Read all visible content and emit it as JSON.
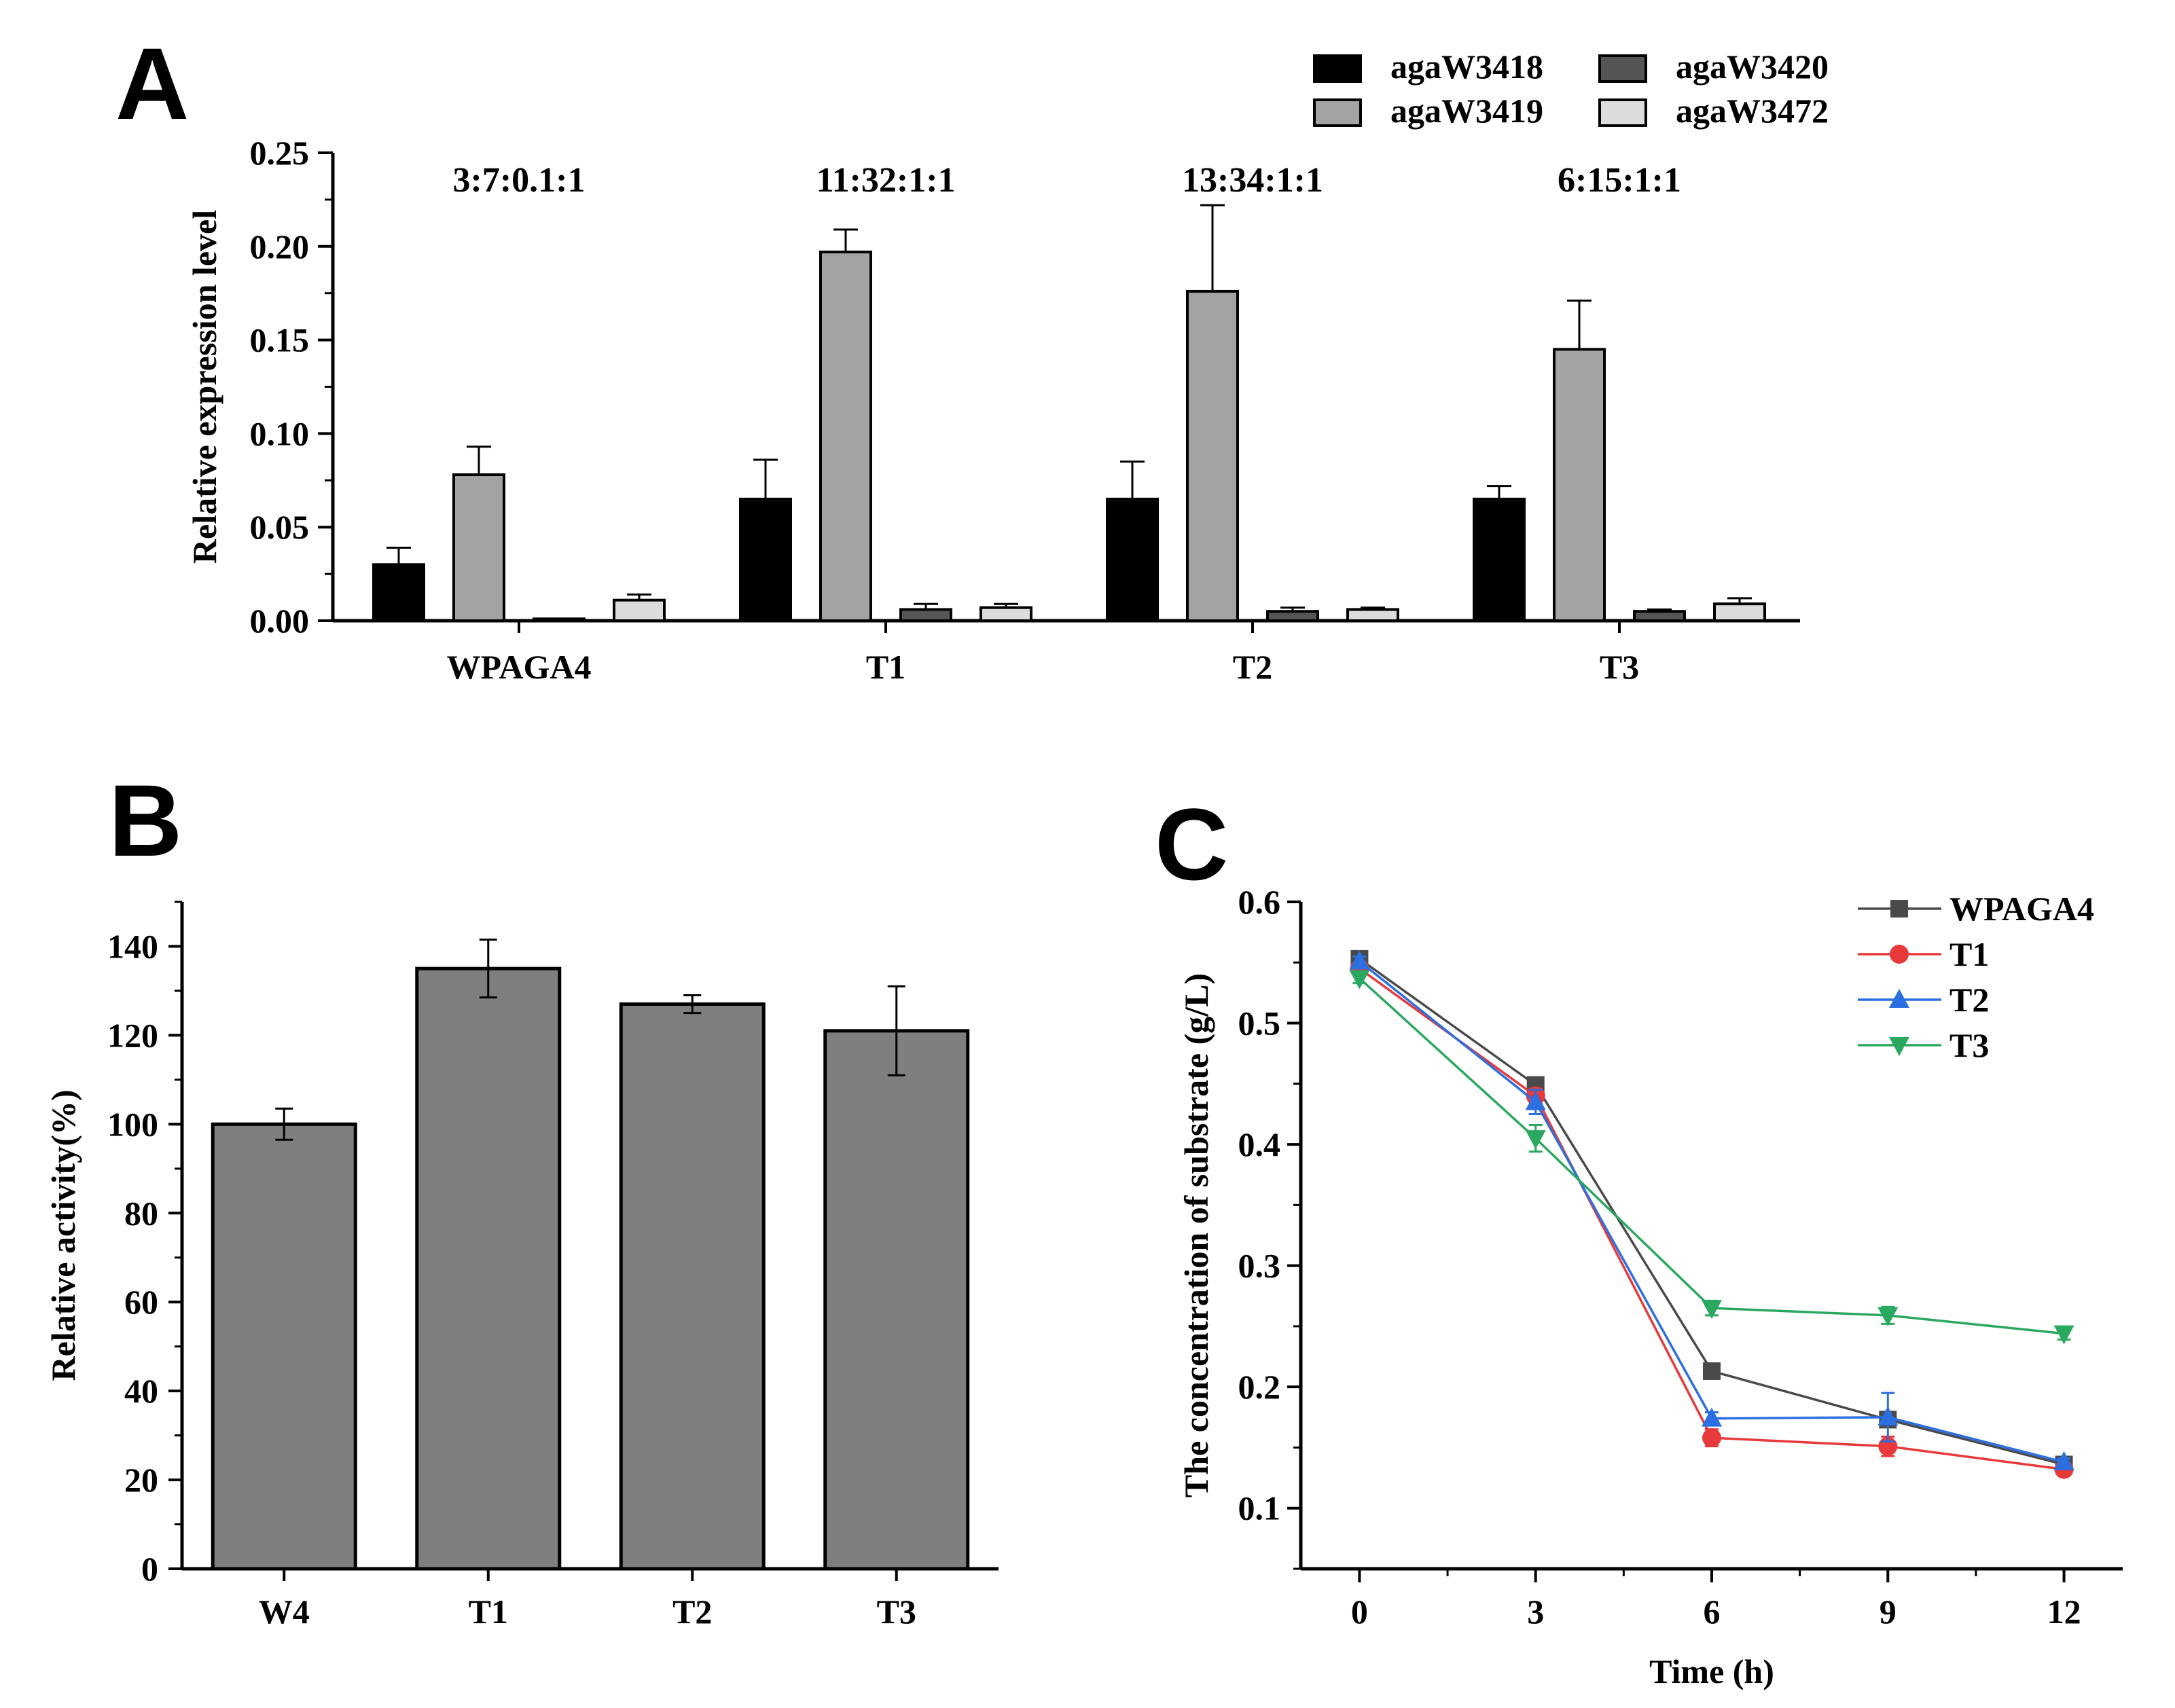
{
  "panels": {
    "a_label": "A",
    "b_label": "B",
    "c_label": "C"
  },
  "colors": {
    "agaW3418": "#000000",
    "agaW3420": "#555555",
    "agaW3419": "#a3a3a3",
    "agaW3472": "#dcdcdc",
    "barB": "#7f7f7f",
    "WPAGA4": "#4a4a4a",
    "T1": "#e8393b",
    "T2": "#2c6fe0",
    "T3": "#2aa85f"
  },
  "chart_data": [
    {
      "id": "A",
      "type": "bar",
      "title": "",
      "ylabel": "Relative expression level",
      "xlabel": "",
      "ylim": [
        0,
        0.25
      ],
      "yticks": [
        "0.00",
        "0.05",
        "0.10",
        "0.15",
        "0.20",
        "0.25"
      ],
      "categories": [
        "WPAGA4",
        "T1",
        "T2",
        "T3"
      ],
      "ratio_labels": [
        "3:7:0.1:1",
        "11:32:1:1",
        "13:34:1:1",
        "6:15:1:1"
      ],
      "legend": {
        "placement": "top-right",
        "order": [
          "agaW3418",
          "agaW3420",
          "agaW3419",
          "agaW3472"
        ]
      },
      "series": [
        {
          "name": "agaW3418",
          "values": [
            0.03,
            0.065,
            0.065,
            0.065
          ],
          "errors": [
            0.009,
            0.021,
            0.02,
            0.007
          ]
        },
        {
          "name": "agaW3419",
          "values": [
            0.078,
            0.197,
            0.176,
            0.145
          ],
          "errors": [
            0.015,
            0.012,
            0.046,
            0.026
          ]
        },
        {
          "name": "agaW3420",
          "values": [
            0.001,
            0.006,
            0.005,
            0.005
          ],
          "errors": [
            0.0,
            0.003,
            0.002,
            0.001
          ]
        },
        {
          "name": "agaW3472",
          "values": [
            0.011,
            0.007,
            0.006,
            0.009
          ],
          "errors": [
            0.003,
            0.002,
            0.001,
            0.003
          ]
        }
      ]
    },
    {
      "id": "B",
      "type": "bar",
      "title": "",
      "ylabel": "Relative activity(%)",
      "xlabel": "",
      "ylim": [
        0,
        150
      ],
      "yticks": [
        "0",
        "20",
        "40",
        "60",
        "80",
        "100",
        "120",
        "140"
      ],
      "categories": [
        "W4",
        "T1",
        "T2",
        "T3"
      ],
      "values": [
        100,
        135,
        127,
        121
      ],
      "errors": [
        3.5,
        6.5,
        2.0,
        10.0
      ]
    },
    {
      "id": "C",
      "type": "line",
      "title": "",
      "ylabel": "The concentration of  substrate (g/L)",
      "xlabel": "Time (h)",
      "xlim": [
        -1,
        13
      ],
      "ylim": [
        0.05,
        0.6
      ],
      "xticks": [
        "0",
        "3",
        "6",
        "9",
        "12"
      ],
      "yticks": [
        "0.1",
        "0.2",
        "0.3",
        "0.4",
        "0.5",
        "0.6"
      ],
      "x": [
        0,
        3,
        6,
        9,
        12
      ],
      "legend": {
        "placement": "top-right"
      },
      "series": [
        {
          "name": "WPAGA4",
          "marker": "square",
          "values": [
            0.553,
            0.449,
            0.213,
            0.173,
            0.136
          ],
          "errors": [
            0.004,
            0.006,
            0.003,
            0.004,
            0.003
          ]
        },
        {
          "name": "T1",
          "marker": "circle",
          "values": [
            0.545,
            0.44,
            0.158,
            0.151,
            0.132
          ],
          "errors": [
            0.004,
            0.006,
            0.007,
            0.008,
            0.003
          ]
        },
        {
          "name": "T2",
          "marker": "triangle-up",
          "values": [
            0.551,
            0.435,
            0.174,
            0.175,
            0.138
          ],
          "errors": [
            0.004,
            0.01,
            0.005,
            0.02,
            0.003
          ]
        },
        {
          "name": "T3",
          "marker": "triangle-down",
          "values": [
            0.537,
            0.405,
            0.265,
            0.259,
            0.244
          ],
          "errors": [
            0.004,
            0.011,
            0.006,
            0.007,
            0.005
          ]
        }
      ]
    }
  ]
}
